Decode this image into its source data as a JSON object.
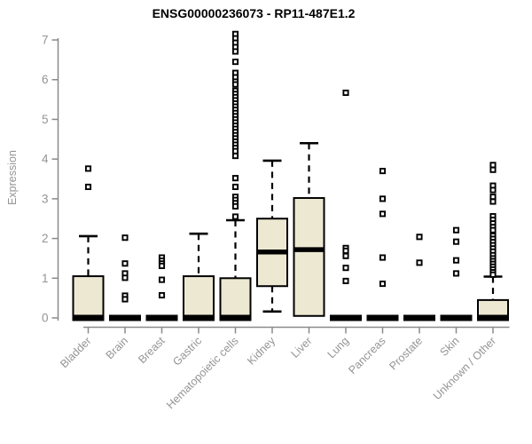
{
  "chart_data": {
    "type": "boxplot",
    "title": "ENSG00000236073 - RP11-487E1.2",
    "xlabel": "",
    "ylabel": "Expression",
    "ylim": [
      0,
      7.2
    ],
    "yticks": [
      0,
      1,
      2,
      3,
      4,
      5,
      6,
      7
    ],
    "grid": false,
    "legend": "none",
    "categories": [
      "Bladder",
      "Brain",
      "Breast",
      "Gastric",
      "Hematopoietic cells",
      "Kidney",
      "Liver",
      "Lung",
      "Pancreas",
      "Prostate",
      "Skin",
      "Unknown / Other"
    ],
    "boxes": [
      {
        "name": "Bladder",
        "whisker_low": 0,
        "q1": 0,
        "median": 0,
        "q3": 1.05,
        "whisker_high": 2.06,
        "outliers": [
          3.76,
          3.3
        ]
      },
      {
        "name": "Brain",
        "whisker_low": 0,
        "q1": 0,
        "median": 0,
        "q3": 0,
        "whisker_high": 0,
        "outliers": [
          2.02,
          1.37,
          1.12,
          1.01,
          0.56,
          0.47
        ]
      },
      {
        "name": "Breast",
        "whisker_low": 0,
        "q1": 0,
        "median": 0,
        "q3": 0,
        "whisker_high": 0,
        "outliers": [
          1.52,
          1.44,
          1.37,
          1.31,
          0.96,
          0.57
        ]
      },
      {
        "name": "Gastric",
        "whisker_low": 0,
        "q1": 0,
        "median": 0,
        "q3": 1.05,
        "whisker_high": 2.12,
        "outliers": []
      },
      {
        "name": "Hematopoietic cells",
        "whisker_low": 0,
        "q1": 0,
        "median": 0,
        "q3": 1.0,
        "whisker_high": 2.46,
        "outliers": [
          7.15,
          7.04,
          6.93,
          6.82,
          6.71,
          6.45,
          6.17,
          6.06,
          5.95,
          5.88,
          5.72,
          5.64,
          5.56,
          5.48,
          5.4,
          5.32,
          5.24,
          5.16,
          5.08,
          5.0,
          4.92,
          4.84,
          4.76,
          4.68,
          4.6,
          4.52,
          4.44,
          4.36,
          4.28,
          4.2,
          4.08,
          3.52,
          3.3,
          3.05,
          2.97,
          2.89,
          2.81,
          2.55
        ]
      },
      {
        "name": "Kidney",
        "whisker_low": 0.16,
        "q1": 0.8,
        "median": 1.66,
        "q3": 2.5,
        "whisker_high": 3.96,
        "outliers": []
      },
      {
        "name": "Liver",
        "whisker_low": 0.05,
        "q1": 0.05,
        "median": 1.72,
        "q3": 3.02,
        "whisker_high": 4.4,
        "outliers": []
      },
      {
        "name": "Lung",
        "whisker_low": 0,
        "q1": 0,
        "median": 0,
        "q3": 0,
        "whisker_high": 0,
        "outliers": [
          5.67,
          1.76,
          1.69,
          1.56,
          1.26,
          0.93
        ]
      },
      {
        "name": "Pancreas",
        "whisker_low": 0,
        "q1": 0,
        "median": 0,
        "q3": 0,
        "whisker_high": 0,
        "outliers": [
          3.7,
          3.0,
          2.62,
          1.52,
          0.86
        ]
      },
      {
        "name": "Prostate",
        "whisker_low": 0,
        "q1": 0,
        "median": 0,
        "q3": 0,
        "whisker_high": 0,
        "outliers": [
          2.04,
          1.39
        ]
      },
      {
        "name": "Skin",
        "whisker_low": 0,
        "q1": 0,
        "median": 0,
        "q3": 0,
        "whisker_high": 0,
        "outliers": [
          2.21,
          1.92,
          1.45,
          1.12
        ]
      },
      {
        "name": "Unknown / Other",
        "whisker_low": 0,
        "q1": 0,
        "median": 0,
        "q3": 0.45,
        "whisker_high": 1.04,
        "outliers": [
          3.85,
          3.73,
          3.33,
          3.22,
          3.05,
          2.93,
          2.56,
          2.47,
          2.38,
          2.29,
          2.21,
          2.07,
          1.99,
          1.91,
          1.83,
          1.75,
          1.67,
          1.58,
          1.5,
          1.43,
          1.36,
          1.29,
          1.22,
          1.15,
          1.09
        ]
      }
    ],
    "colors": {
      "box_fill": "#EDE8D2",
      "box_stroke": "#000000",
      "median": "#000000",
      "outlier_stroke": "#000000",
      "outlier_fill": "#ffffff",
      "axis": "#8a8a8a",
      "tick_label": "#949494",
      "title": "#000000",
      "background": "#ffffff"
    }
  }
}
